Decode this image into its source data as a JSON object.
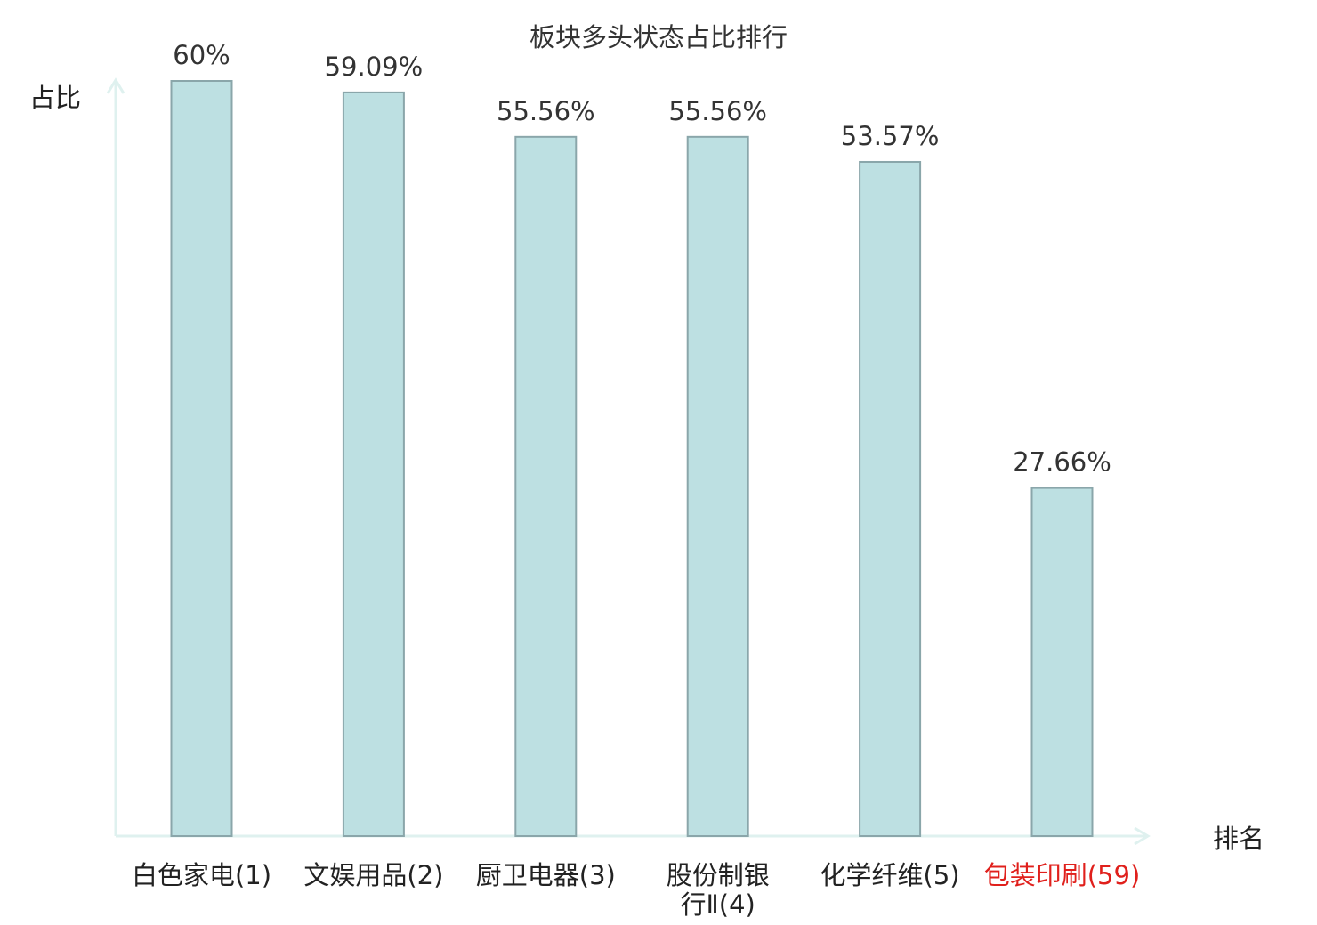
{
  "chart_data": {
    "type": "bar",
    "title": "板块多头状态占比排行",
    "ylabel": "占比",
    "xlabel": "排名",
    "ylim": [
      0,
      60
    ],
    "grid": false,
    "legend": "none",
    "categories": [
      "白色家电(1)",
      "文娱用品(2)",
      "厨卫电器(3)",
      "股份制银行Ⅱ(4)",
      "化学纤维(5)",
      "包装印刷(59)"
    ],
    "category_lines": [
      [
        "白色家电(1)"
      ],
      [
        "文娱用品(2)"
      ],
      [
        "厨卫电器(3)"
      ],
      [
        "股份制银",
        "行Ⅱ(4)"
      ],
      [
        "化学纤维(5)"
      ],
      [
        "包装印刷(59)"
      ]
    ],
    "highlight_index": 5,
    "values": [
      60,
      59.09,
      55.56,
      55.56,
      53.57,
      27.66
    ],
    "value_labels": [
      "60%",
      "59.09%",
      "55.56%",
      "55.56%",
      "53.57%",
      "27.66%"
    ],
    "colors": {
      "bar_fill": "#bde0e2",
      "bar_stroke": "#8aa6aa",
      "axis": "#dff1ef",
      "text": "#333333",
      "highlight_text": "#e0201c"
    }
  }
}
